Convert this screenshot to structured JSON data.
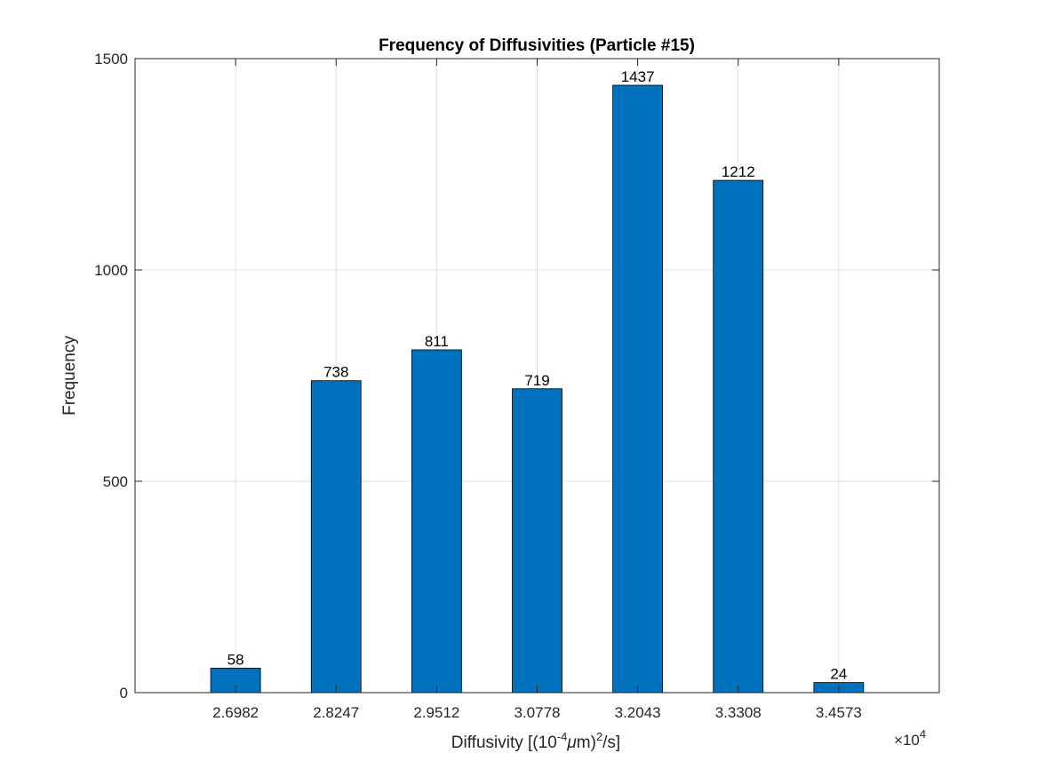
{
  "chart_data": {
    "type": "bar",
    "title": "Frequency of Diffusivities (Particle #15)",
    "xlabel": {
      "prefix": "Diffusivity [(10",
      "exp": "-4",
      "mu": "μ",
      "unit": "m)",
      "exp2": "2",
      "suffix": "/s]"
    },
    "ylabel": "Frequency",
    "x_multiplier": {
      "symbol": "×",
      "base": "10",
      "exp": "4"
    },
    "categories": [
      "2.6982",
      "2.8247",
      "2.9512",
      "3.0778",
      "3.2043",
      "3.3308",
      "3.4573"
    ],
    "values": [
      58,
      738,
      811,
      719,
      1437,
      1212,
      24
    ],
    "ylim": [
      0,
      1500
    ],
    "yticks": [
      "0",
      "500",
      "1000",
      "1500"
    ],
    "ytick_values": [
      0,
      500,
      1000,
      1500
    ],
    "grid": true,
    "bar_color": "#0072BD",
    "bar_edge_color": "#000000"
  }
}
